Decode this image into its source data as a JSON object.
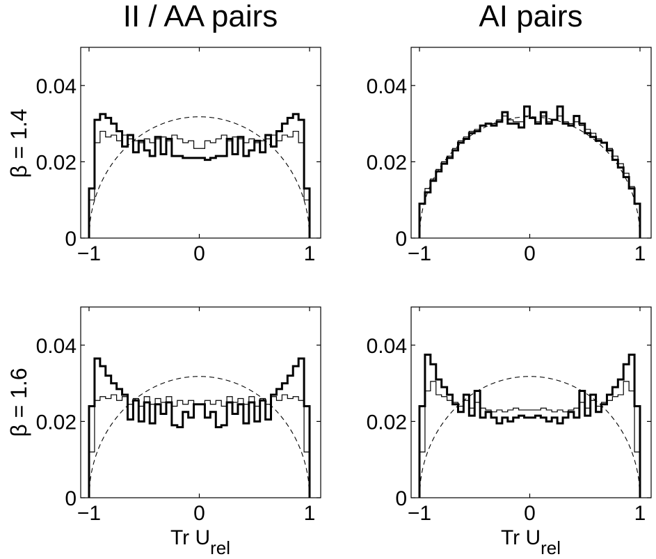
{
  "figure": {
    "column_titles": [
      "II / AA pairs",
      "AI pairs"
    ],
    "row_labels": [
      "β = 1.4",
      "β = 1.6"
    ],
    "x_axis_label": "Tr U",
    "x_axis_label_sub": "rel"
  },
  "chart_data": [
    {
      "type": "line",
      "panel": "beta14-ii-aa",
      "xlim": [
        -1,
        1
      ],
      "ylim": [
        0,
        0.05
      ],
      "xticks": [
        -1,
        0,
        1
      ],
      "yticks": [
        0,
        0.02,
        0.04
      ],
      "xtick_labels": [
        "−1",
        "0",
        "1"
      ],
      "ytick_labels": [
        "0",
        "0.02",
        "0.04"
      ],
      "series": [
        {
          "style": "thick",
          "values": [
            0.013,
            0.031,
            0.0325,
            0.0315,
            0.03,
            0.028,
            0.024,
            0.027,
            0.0225,
            0.0255,
            0.023,
            0.0215,
            0.0265,
            0.022,
            0.026,
            0.0215,
            0.0215,
            0.021,
            0.021,
            0.021,
            0.021,
            0.0205,
            0.021,
            0.0215,
            0.0215,
            0.026,
            0.022,
            0.0265,
            0.0215,
            0.023,
            0.0255,
            0.0225,
            0.027,
            0.024,
            0.028,
            0.03,
            0.0315,
            0.0325,
            0.031,
            0.013
          ]
        },
        {
          "style": "thin",
          "values": [
            0.01,
            0.025,
            0.028,
            0.0265,
            0.027,
            0.0255,
            0.027,
            0.026,
            0.0255,
            0.025,
            0.026,
            0.025,
            0.026,
            0.0265,
            0.0255,
            0.027,
            0.026,
            0.025,
            0.0255,
            0.0235,
            0.0235,
            0.0255,
            0.025,
            0.026,
            0.027,
            0.0255,
            0.0265,
            0.026,
            0.025,
            0.026,
            0.025,
            0.0255,
            0.026,
            0.027,
            0.0255,
            0.027,
            0.0265,
            0.028,
            0.025,
            0.01
          ]
        }
      ],
      "reference_curve": {
        "style": "dashed",
        "formula": "2/π·√(1−x²)/20",
        "peak": 0.0318
      }
    },
    {
      "type": "line",
      "panel": "beta14-ai",
      "xlim": [
        -1,
        1
      ],
      "ylim": [
        0,
        0.05
      ],
      "xticks": [
        -1,
        0,
        1
      ],
      "yticks": [
        0,
        0.02,
        0.04
      ],
      "xtick_labels": [
        "−1",
        "0",
        "1"
      ],
      "ytick_labels": [
        "0",
        "0.02",
        "0.04"
      ],
      "series": [
        {
          "style": "thick",
          "values": [
            0.009,
            0.012,
            0.015,
            0.0175,
            0.0195,
            0.021,
            0.023,
            0.025,
            0.026,
            0.0275,
            0.028,
            0.0295,
            0.03,
            0.0295,
            0.0305,
            0.033,
            0.03,
            0.03,
            0.029,
            0.0345,
            0.0315,
            0.03,
            0.033,
            0.03,
            0.031,
            0.0345,
            0.03,
            0.0295,
            0.032,
            0.03,
            0.0275,
            0.0265,
            0.0255,
            0.025,
            0.023,
            0.0205,
            0.0185,
            0.016,
            0.013,
            0.009
          ]
        },
        {
          "style": "thin",
          "values": [
            0.009,
            0.013,
            0.0155,
            0.018,
            0.02,
            0.0215,
            0.0235,
            0.0255,
            0.0265,
            0.028,
            0.0285,
            0.0295,
            0.03,
            0.03,
            0.031,
            0.032,
            0.031,
            0.0305,
            0.0305,
            0.032,
            0.0315,
            0.0305,
            0.032,
            0.0305,
            0.031,
            0.032,
            0.0305,
            0.03,
            0.0305,
            0.0295,
            0.0285,
            0.0275,
            0.026,
            0.025,
            0.0235,
            0.0215,
            0.0195,
            0.017,
            0.0135,
            0.009
          ]
        }
      ],
      "reference_curve": {
        "style": "dashed",
        "formula": "2/π·√(1−x²)/20",
        "peak": 0.0318
      }
    },
    {
      "type": "line",
      "panel": "beta16-ii-aa",
      "xlim": [
        -1,
        1
      ],
      "ylim": [
        0,
        0.05
      ],
      "xticks": [
        -1,
        0,
        1
      ],
      "yticks": [
        0,
        0.02,
        0.04
      ],
      "xtick_labels": [
        "−1",
        "0",
        "1"
      ],
      "ytick_labels": [
        "0",
        "0.02",
        "0.04"
      ],
      "series": [
        {
          "style": "thick",
          "values": [
            0.024,
            0.0365,
            0.0345,
            0.032,
            0.03,
            0.0285,
            0.027,
            0.0205,
            0.0255,
            0.02,
            0.025,
            0.0195,
            0.0245,
            0.022,
            0.025,
            0.019,
            0.0185,
            0.0225,
            0.021,
            0.0245,
            0.0245,
            0.021,
            0.0225,
            0.0185,
            0.019,
            0.025,
            0.022,
            0.0245,
            0.0195,
            0.025,
            0.02,
            0.0255,
            0.0205,
            0.027,
            0.0285,
            0.03,
            0.032,
            0.0345,
            0.0365,
            0.024
          ]
        },
        {
          "style": "thin",
          "values": [
            0.012,
            0.0255,
            0.0265,
            0.026,
            0.027,
            0.0255,
            0.0265,
            0.0245,
            0.026,
            0.024,
            0.0265,
            0.0245,
            0.026,
            0.025,
            0.0265,
            0.024,
            0.0255,
            0.0245,
            0.0255,
            0.0245,
            0.0245,
            0.0255,
            0.0245,
            0.0255,
            0.024,
            0.0265,
            0.025,
            0.026,
            0.0245,
            0.0265,
            0.024,
            0.026,
            0.0245,
            0.0265,
            0.0255,
            0.027,
            0.026,
            0.0265,
            0.0255,
            0.012
          ]
        }
      ],
      "reference_curve": {
        "style": "dashed",
        "formula": "2/π·√(1−x²)/20",
        "peak": 0.0318
      }
    },
    {
      "type": "line",
      "panel": "beta16-ai",
      "xlim": [
        -1,
        1
      ],
      "ylim": [
        0,
        0.05
      ],
      "xticks": [
        -1,
        0,
        1
      ],
      "yticks": [
        0,
        0.02,
        0.04
      ],
      "xtick_labels": [
        "−1",
        "0",
        "1"
      ],
      "ytick_labels": [
        "0",
        "0.02",
        "0.04"
      ],
      "series": [
        {
          "style": "thick",
          "values": [
            0.024,
            0.0375,
            0.035,
            0.031,
            0.029,
            0.027,
            0.0245,
            0.0225,
            0.027,
            0.0215,
            0.028,
            0.021,
            0.0225,
            0.021,
            0.0195,
            0.021,
            0.02,
            0.021,
            0.0215,
            0.021,
            0.021,
            0.0215,
            0.021,
            0.02,
            0.021,
            0.0195,
            0.021,
            0.0225,
            0.021,
            0.028,
            0.0215,
            0.027,
            0.0225,
            0.0245,
            0.027,
            0.029,
            0.031,
            0.035,
            0.0375,
            0.024
          ]
        },
        {
          "style": "thin",
          "values": [
            0.012,
            0.028,
            0.0305,
            0.027,
            0.0265,
            0.0255,
            0.025,
            0.024,
            0.0255,
            0.0235,
            0.025,
            0.0235,
            0.023,
            0.0225,
            0.023,
            0.0225,
            0.023,
            0.0235,
            0.023,
            0.023,
            0.023,
            0.023,
            0.0235,
            0.023,
            0.0225,
            0.023,
            0.0225,
            0.023,
            0.0235,
            0.025,
            0.0235,
            0.0255,
            0.024,
            0.025,
            0.0255,
            0.0265,
            0.027,
            0.0305,
            0.028,
            0.012
          ]
        }
      ],
      "reference_curve": {
        "style": "dashed",
        "formula": "2/π·√(1−x²)/20",
        "peak": 0.0318
      }
    }
  ]
}
